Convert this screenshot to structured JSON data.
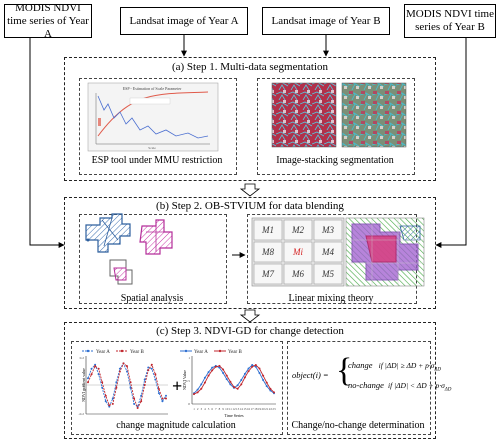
{
  "inputs": {
    "modis_a": "MODIS NDVI time series of Year A",
    "landsat_a": "Landsat image of Year A",
    "landsat_b": "Landsat image of Year B",
    "modis_b": "MODIS NDVI time series of Year B"
  },
  "step1": {
    "title": "(a) Step 1. Multi-data segmentation",
    "left_caption": "ESP tool under MMU restriction",
    "right_caption": "Image-stacking segmentation",
    "esp_chart_title": "ESP - Estimation of Scale Parameter",
    "esp_xlabel": "Scale"
  },
  "step2": {
    "title": "(b) Step 2. OB-STVIUM for data blending",
    "left_caption": "Spatial analysis",
    "right_caption": "Linear mixing theory",
    "grid_labels": [
      "M1",
      "M2",
      "M3",
      "M8",
      "Mi",
      "M4",
      "M7",
      "M6",
      "M5"
    ]
  },
  "step3": {
    "title": "(c) Step 3. NDVI-GD for change detection",
    "left_caption": "change magnitude calculation",
    "right_caption": "Change/no-change determination",
    "legend_a": "Year A",
    "legend_b": "Year B",
    "chart1_ylabel": "NDVI gradient value",
    "chart2_ylabel": "NDVI Value",
    "chart2_xlabel": "Time Series",
    "formula_lhs": "object(i) =",
    "formula_change": "change",
    "formula_nochange": "no-change",
    "formula_cond1": "if |ΔD| ≥ ΔD + p·σ",
    "formula_cond2": "if |ΔD| < ΔD + p·σ",
    "formula_sub": "ΔD"
  },
  "chart_data": [
    {
      "type": "line",
      "ylabel": "NDVI gradient value",
      "x": [
        1,
        2,
        3,
        4,
        5,
        6,
        7,
        8,
        9,
        10,
        11,
        12,
        13,
        14,
        15,
        16,
        17,
        18,
        19,
        20,
        21,
        22,
        23
      ],
      "ylim": [
        -0.2,
        0.2
      ],
      "series": [
        {
          "name": "Year A",
          "color": "#2e6fd1",
          "values": [
            0.05,
            0.12,
            0.15,
            0.08,
            -0.02,
            -0.12,
            -0.16,
            -0.1,
            0.02,
            0.12,
            0.16,
            0.1,
            -0.02,
            -0.14,
            -0.16,
            -0.08,
            0.04,
            0.13,
            0.12,
            0.04,
            -0.06,
            -0.12,
            -0.08
          ]
        },
        {
          "name": "Year B",
          "color": "#c0262d",
          "values": [
            0.02,
            0.08,
            0.14,
            0.12,
            0.02,
            -0.08,
            -0.15,
            -0.14,
            -0.02,
            0.1,
            0.16,
            0.14,
            0.02,
            -0.1,
            -0.17,
            -0.12,
            0.0,
            0.11,
            0.15,
            0.08,
            -0.03,
            -0.1,
            -0.1
          ]
        }
      ]
    },
    {
      "type": "line",
      "ylabel": "NDVI Value",
      "xlabel": "Time Series",
      "x": [
        1,
        2,
        3,
        4,
        5,
        6,
        7,
        8,
        9,
        10,
        11,
        12,
        13,
        14,
        15,
        16,
        17,
        18,
        19,
        20,
        21,
        22,
        23
      ],
      "ylim": [
        0,
        1
      ],
      "series": [
        {
          "name": "Year A",
          "color": "#2e6fd1",
          "values": [
            0.2,
            0.28,
            0.4,
            0.55,
            0.68,
            0.78,
            0.82,
            0.78,
            0.66,
            0.52,
            0.4,
            0.32,
            0.38,
            0.5,
            0.64,
            0.76,
            0.84,
            0.8,
            0.66,
            0.5,
            0.36,
            0.26,
            0.2
          ]
        },
        {
          "name": "Year B",
          "color": "#c0262d",
          "values": [
            0.18,
            0.22,
            0.3,
            0.44,
            0.6,
            0.72,
            0.8,
            0.82,
            0.74,
            0.6,
            0.46,
            0.34,
            0.3,
            0.4,
            0.56,
            0.7,
            0.8,
            0.84,
            0.76,
            0.6,
            0.44,
            0.3,
            0.22
          ]
        }
      ]
    }
  ]
}
